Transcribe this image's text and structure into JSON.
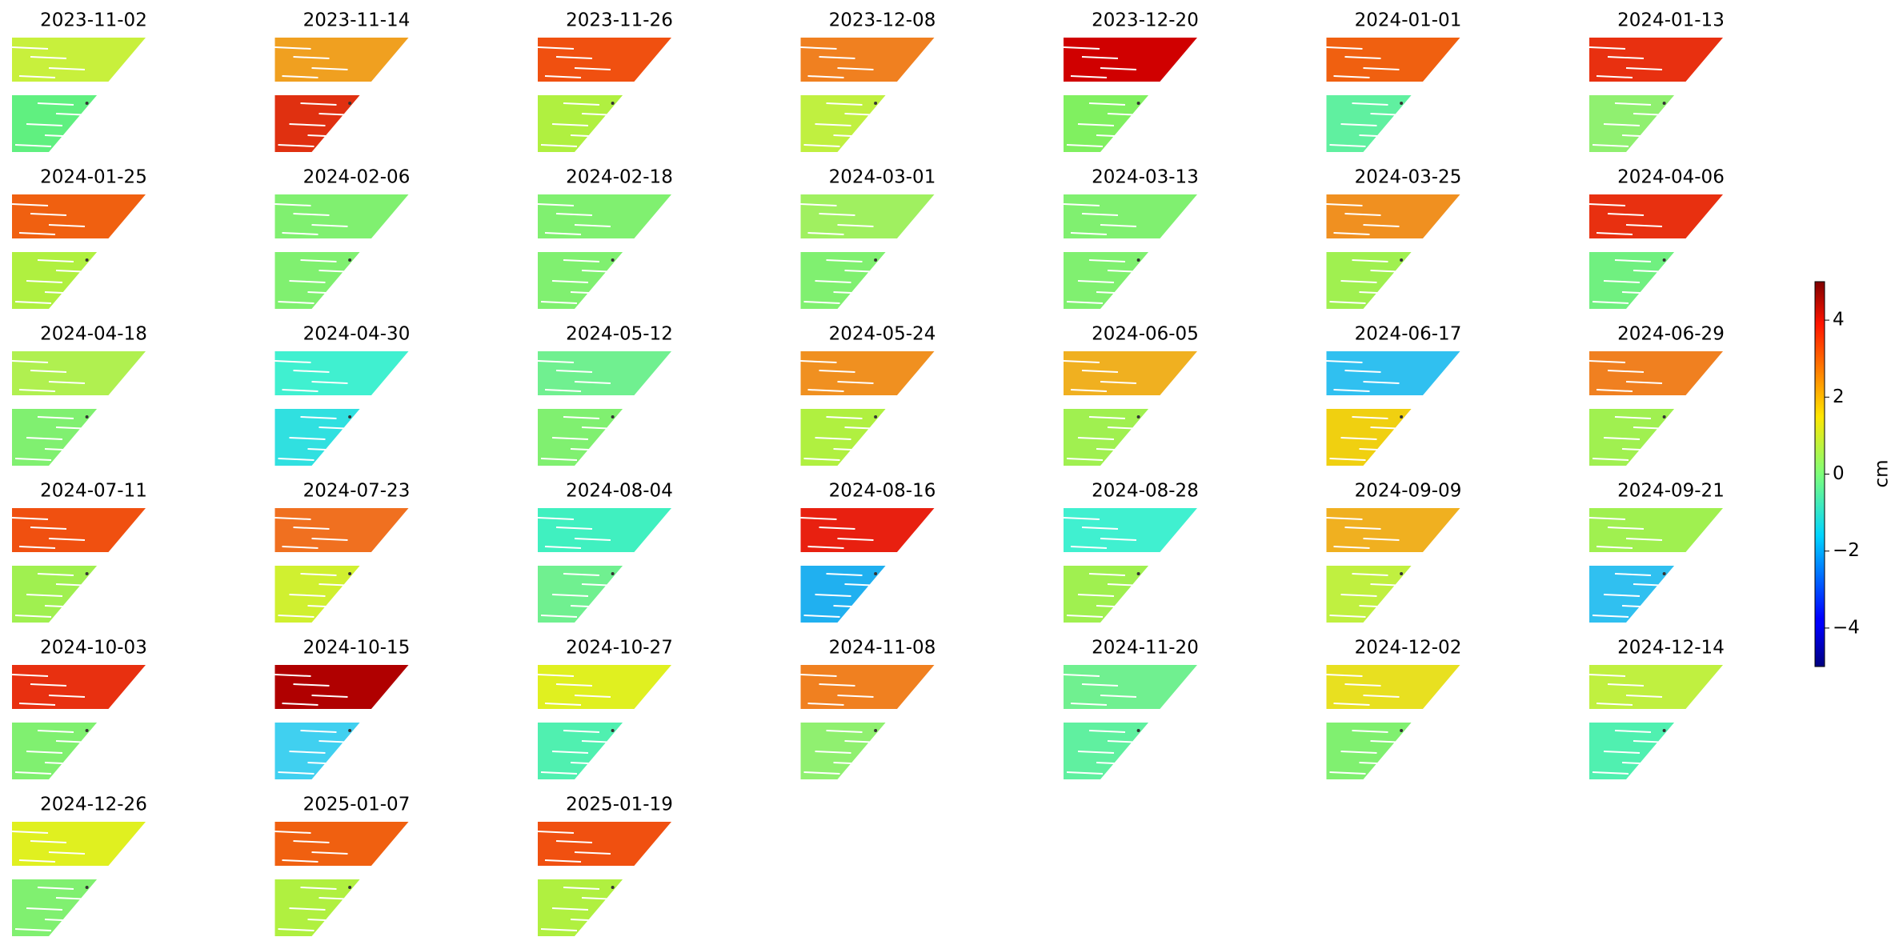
{
  "chart_data": {
    "type": "image_grid",
    "colormap": "jet",
    "panels": [
      {
        "title": "2023-11-02",
        "top_color": "#c8f03c",
        "bottom_color": "#60f080"
      },
      {
        "title": "2023-11-14",
        "top_color": "#f0a020",
        "bottom_color": "#e03010"
      },
      {
        "title": "2023-11-26",
        "top_color": "#f05010",
        "bottom_color": "#b0f040"
      },
      {
        "title": "2023-12-08",
        "top_color": "#f08020",
        "bottom_color": "#c0f040"
      },
      {
        "title": "2023-12-20",
        "top_color": "#d00000",
        "bottom_color": "#80f060"
      },
      {
        "title": "2024-01-01",
        "top_color": "#f06010",
        "bottom_color": "#60f0a0"
      },
      {
        "title": "2024-01-13",
        "top_color": "#e83010",
        "bottom_color": "#90f070"
      },
      {
        "title": "2024-01-25",
        "top_color": "#f06010",
        "bottom_color": "#b0f040"
      },
      {
        "title": "2024-02-06",
        "top_color": "#80f070",
        "bottom_color": "#80f070"
      },
      {
        "title": "2024-02-18",
        "top_color": "#80f070",
        "bottom_color": "#80f070"
      },
      {
        "title": "2024-03-01",
        "top_color": "#a0f060",
        "bottom_color": "#80f070"
      },
      {
        "title": "2024-03-13",
        "top_color": "#80f070",
        "bottom_color": "#80f070"
      },
      {
        "title": "2024-03-25",
        "top_color": "#f09020",
        "bottom_color": "#a0f050"
      },
      {
        "title": "2024-04-06",
        "top_color": "#e83010",
        "bottom_color": "#70f080"
      },
      {
        "title": "2024-04-18",
        "top_color": "#b0f050",
        "bottom_color": "#80f070"
      },
      {
        "title": "2024-04-30",
        "top_color": "#40f0d0",
        "bottom_color": "#30e0e0"
      },
      {
        "title": "2024-05-12",
        "top_color": "#70f090",
        "bottom_color": "#80f070"
      },
      {
        "title": "2024-05-24",
        "top_color": "#f09020",
        "bottom_color": "#b0f040"
      },
      {
        "title": "2024-06-05",
        "top_color": "#f0b020",
        "bottom_color": "#a0f050"
      },
      {
        "title": "2024-06-17",
        "top_color": "#30c0f0",
        "bottom_color": "#f0d010"
      },
      {
        "title": "2024-06-29",
        "top_color": "#f08020",
        "bottom_color": "#a0f050"
      },
      {
        "title": "2024-07-11",
        "top_color": "#f05010",
        "bottom_color": "#a0f050"
      },
      {
        "title": "2024-07-23",
        "top_color": "#f07020",
        "bottom_color": "#d0f030"
      },
      {
        "title": "2024-08-04",
        "top_color": "#40f0c0",
        "bottom_color": "#70f090"
      },
      {
        "title": "2024-08-16",
        "top_color": "#e82010",
        "bottom_color": "#20b0f0"
      },
      {
        "title": "2024-08-28",
        "top_color": "#40f0d0",
        "bottom_color": "#a0f050"
      },
      {
        "title": "2024-09-09",
        "top_color": "#f0b020",
        "bottom_color": "#c0f040"
      },
      {
        "title": "2024-09-21",
        "top_color": "#a0f050",
        "bottom_color": "#30c0f0"
      },
      {
        "title": "2024-10-03",
        "top_color": "#e83010",
        "bottom_color": "#80f070"
      },
      {
        "title": "2024-10-15",
        "top_color": "#b00000",
        "bottom_color": "#40d0f0"
      },
      {
        "title": "2024-10-27",
        "top_color": "#e0f020",
        "bottom_color": "#50f0b0"
      },
      {
        "title": "2024-11-08",
        "top_color": "#f08020",
        "bottom_color": "#90f070"
      },
      {
        "title": "2024-11-20",
        "top_color": "#70f090",
        "bottom_color": "#60f0a0"
      },
      {
        "title": "2024-12-02",
        "top_color": "#e8e020",
        "bottom_color": "#80f070"
      },
      {
        "title": "2024-12-14",
        "top_color": "#c0f040",
        "bottom_color": "#50f0b0"
      },
      {
        "title": "2024-12-26",
        "top_color": "#e0f020",
        "bottom_color": "#80f070"
      },
      {
        "title": "2025-01-07",
        "top_color": "#f06010",
        "bottom_color": "#b0f040"
      },
      {
        "title": "2025-01-19",
        "top_color": "#f05010",
        "bottom_color": "#b0f040"
      }
    ],
    "colorbar": {
      "label": "cm",
      "lim": [
        -5,
        5
      ],
      "ticks": [
        {
          "value": -4,
          "label": "−4"
        },
        {
          "value": -2,
          "label": "−2"
        },
        0,
        2,
        4
      ]
    }
  }
}
